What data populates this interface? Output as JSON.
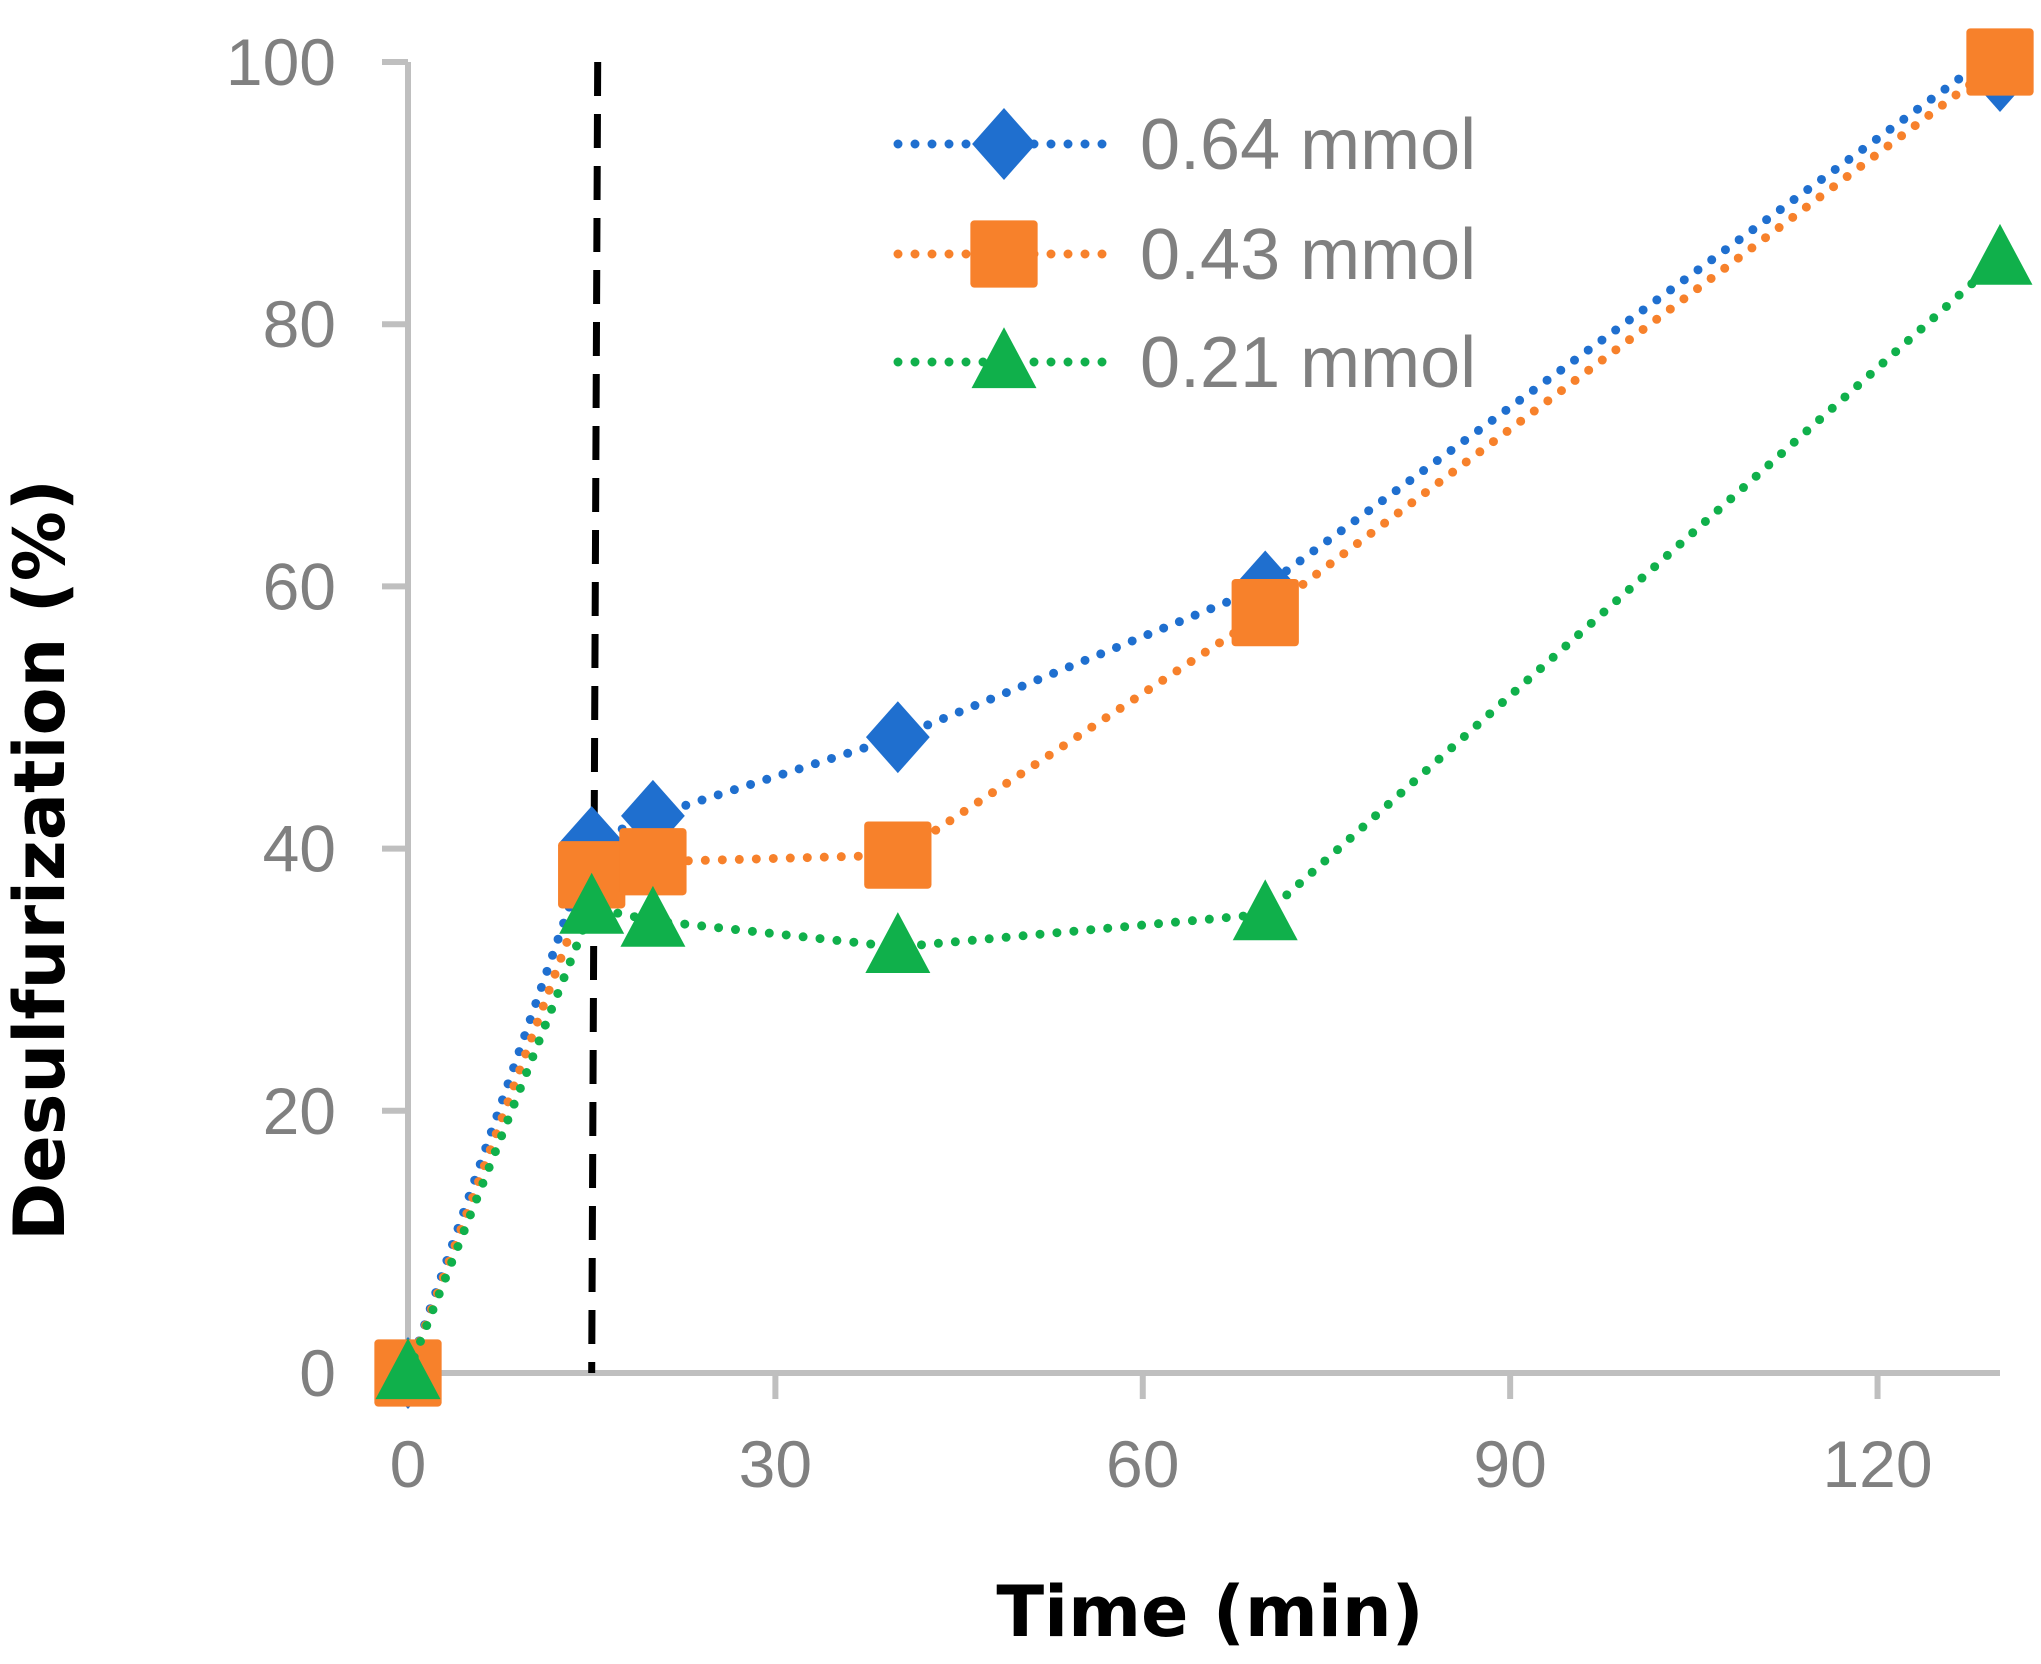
{
  "chart_data": {
    "type": "line",
    "title": "",
    "xlabel": "Time (min)",
    "ylabel": "Desulfurization (%)",
    "xlim": [
      0,
      130
    ],
    "ylim": [
      0,
      100
    ],
    "xticks": [
      0,
      30,
      60,
      90,
      120
    ],
    "yticks": [
      0,
      20,
      40,
      60,
      80,
      100
    ],
    "grid": false,
    "legend_position": "top-right",
    "reference_line": {
      "x": 15,
      "style": "dashed",
      "color": "#000000"
    },
    "series": [
      {
        "name": "0.64 mmol",
        "marker": "diamond",
        "color": "#1f6fcf",
        "x": [
          0,
          15,
          20,
          40,
          70,
          130
        ],
        "y": [
          0,
          40.5,
          42.5,
          48.5,
          60,
          101
        ]
      },
      {
        "name": "0.43 mmol",
        "marker": "square",
        "color": "#f7812b",
        "x": [
          0,
          15,
          20,
          40,
          70,
          130
        ],
        "y": [
          0,
          38,
          39,
          39.5,
          58,
          100
        ]
      },
      {
        "name": "0.21 mmol",
        "marker": "triangle",
        "color": "#10b04b",
        "x": [
          0,
          15,
          20,
          40,
          70,
          130
        ],
        "y": [
          0,
          35.5,
          34.5,
          32.5,
          35,
          85
        ]
      }
    ]
  }
}
